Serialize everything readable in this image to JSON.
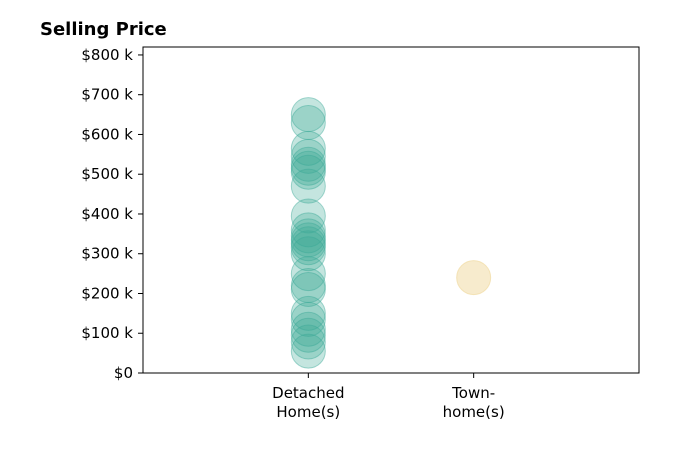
{
  "chart_data": {
    "type": "scatter",
    "title": "Selling Price",
    "xlabel": "",
    "ylabel": "",
    "categories": [
      [
        "Detached",
        "Home(s)"
      ],
      [
        "Town-",
        "home(s)"
      ]
    ],
    "xlim": [
      -1,
      2
    ],
    "ylim": [
      0,
      820000
    ],
    "yticks": [
      0,
      100000,
      200000,
      300000,
      400000,
      500000,
      600000,
      700000,
      800000
    ],
    "ytick_labels": [
      "$0",
      "$100 k",
      "$200 k",
      "$300 k",
      "$400 k",
      "$500 k",
      "$600 k",
      "$700 k",
      "$800 k"
    ],
    "grid": false,
    "legend": "none",
    "series": [
      {
        "category_index": 0,
        "color": "#3aa896",
        "alpha": 0.3,
        "values": [
          55000,
          78000,
          95000,
          110000,
          135000,
          150000,
          210000,
          220000,
          250000,
          300000,
          315000,
          325000,
          335000,
          345000,
          360000,
          395000,
          470000,
          505000,
          515000,
          525000,
          545000,
          565000,
          630000,
          650000
        ]
      },
      {
        "category_index": 1,
        "color": "#f0d89c",
        "alpha": 0.5,
        "values": [
          240000
        ]
      }
    ]
  }
}
